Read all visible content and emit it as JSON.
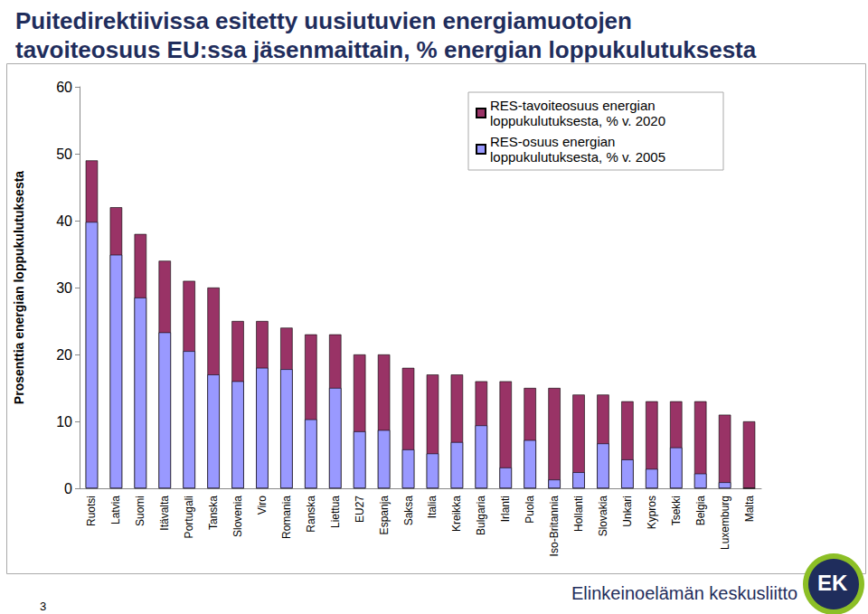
{
  "chart_data": {
    "type": "bar",
    "title": "Puitedirektiivissa esitetty uusiutuvien energiamuotojen\ntavoiteosuus EU:ssa jäsenmaittain, % energian loppukulutuksesta",
    "y_label": "Prosenttia energian loppukulutuksesta",
    "categories": [
      "Ruotsi",
      "Latvia",
      "Suomi",
      "Itävalta",
      "Portugali",
      "Tanska",
      "Slovenia",
      "Viro",
      "Romania",
      "Ranska",
      "Liettua",
      "EU27",
      "Espanja",
      "Saksa",
      "Italia",
      "Kreikka",
      "Bulgaria",
      "Irlanti",
      "Puola",
      "Iso-Britannia",
      "Hollanti",
      "Slovakia",
      "Unkari",
      "Kypros",
      "Tsekki",
      "Belgia",
      "Luxemburg",
      "Malta"
    ],
    "series": [
      {
        "name": "RES-tavoiteosuus energian loppukulutuksesta, % v. 2020",
        "color": "#993366",
        "values": [
          49,
          42,
          38,
          34,
          31,
          30,
          25,
          25,
          24,
          23,
          23,
          20,
          20,
          18,
          17,
          17,
          16,
          16,
          15,
          15,
          14,
          14,
          13,
          13,
          13,
          13,
          11,
          10
        ]
      },
      {
        "name": "RES-osuus energian loppukulutuksesta, % v. 2005",
        "color": "#9999ff",
        "values": [
          39.8,
          34.9,
          28.5,
          23.3,
          20.5,
          17,
          16,
          18,
          17.8,
          10.3,
          15,
          8.5,
          8.7,
          5.8,
          5.2,
          6.9,
          9.4,
          3.1,
          7.2,
          1.3,
          2.4,
          6.7,
          4.3,
          2.9,
          6.1,
          2.2,
          0.9,
          0
        ]
      }
    ],
    "ylim": [
      0,
      60
    ],
    "yticks": [
      0,
      10,
      20,
      30,
      40,
      50,
      60
    ],
    "grid": false,
    "legend": "top-right",
    "annotations": [
      "3",
      "Elinkeinoelämän keskusliitto",
      "EK"
    ]
  }
}
